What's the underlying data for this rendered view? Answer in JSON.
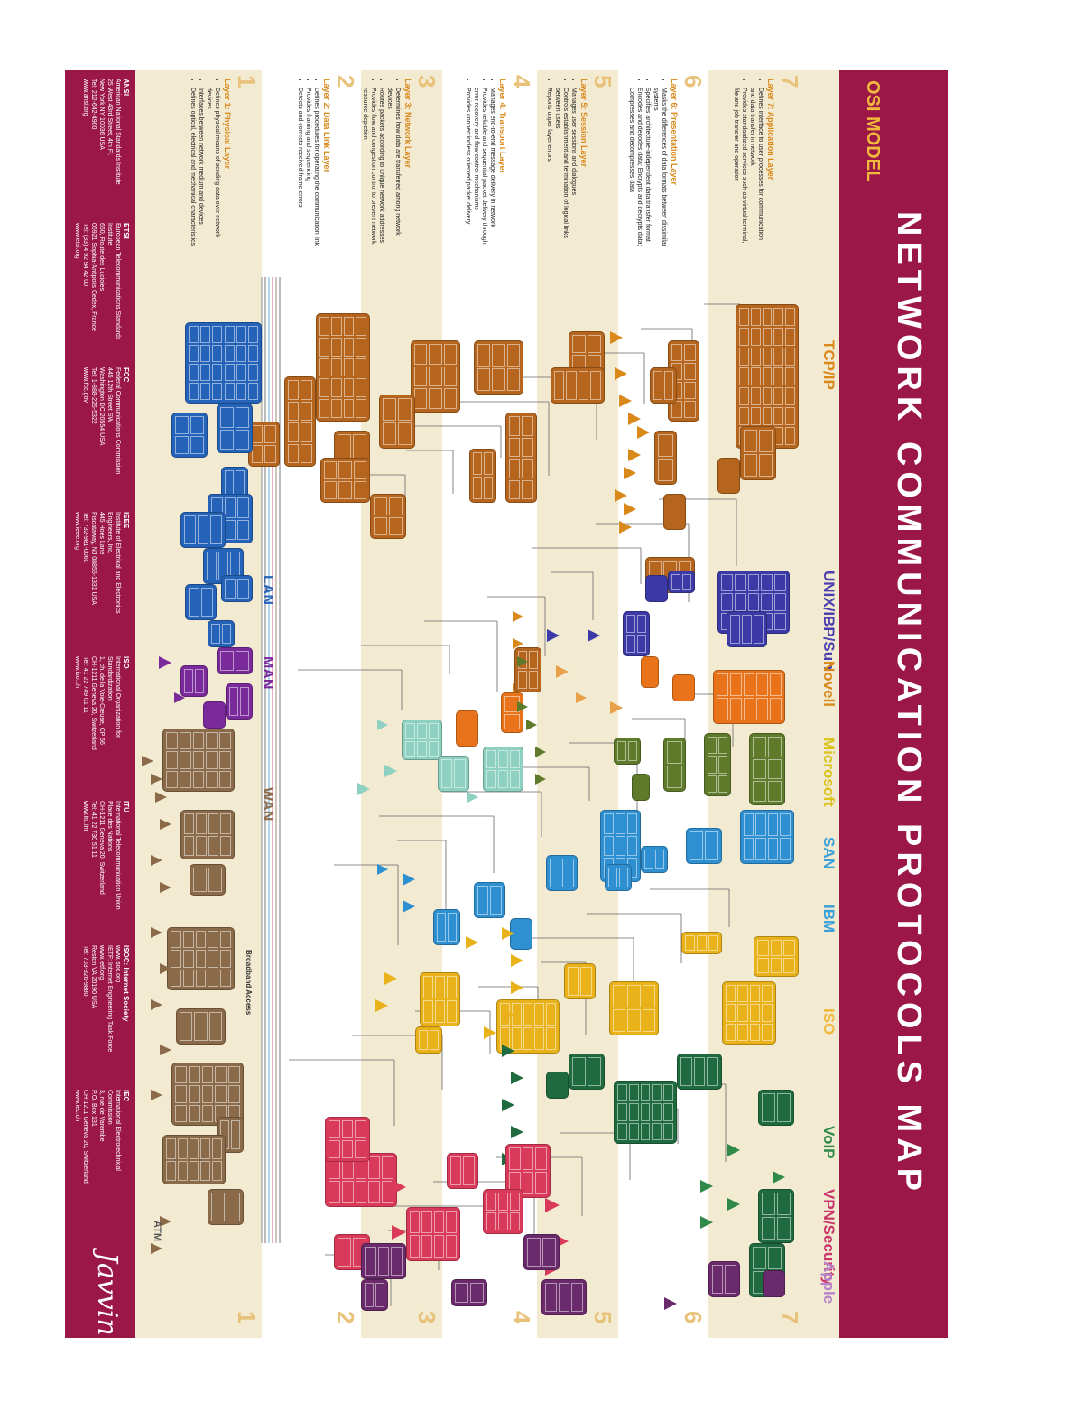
{
  "title": "NETWORK COMMUNICATION PROTOCOLS MAP",
  "osi_label": "OSI MODEL",
  "categories": [
    {
      "name": "TCP/IP",
      "color": "#d9881a"
    },
    {
      "name": "UNIX/IBP/Sun",
      "color": "#4b3fb0"
    },
    {
      "name": "Novell",
      "color": "#d9881a"
    },
    {
      "name": "Microsoft",
      "color": "#d9c21a"
    },
    {
      "name": "SAN",
      "color": "#3aa0d9"
    },
    {
      "name": "IBM",
      "color": "#3aa0d9"
    },
    {
      "name": "ISO",
      "color": "#f0b93c"
    },
    {
      "name": "VoIP",
      "color": "#2f8a4a"
    },
    {
      "name": "VPN/Security",
      "color": "#c9356a"
    },
    {
      "name": "Apple",
      "color": "#b784c9"
    }
  ],
  "layers": [
    {
      "num": "7",
      "title": "Layer 7: Application Layer",
      "points": [
        "Defines interface to user processes for communication and data transfer in network",
        "Provides standardized services such as virtual terminal, file and job transfer and operation"
      ]
    },
    {
      "num": "6",
      "title": "Layer 6: Presentation Layer",
      "points": [
        "Masks the differences of data formats between dissimilar systems",
        "Specifies architecture-independent data transfer format",
        "Encodes and decodes data; Encrypts and decrypts data; Compresses and decompresses data"
      ]
    },
    {
      "num": "5",
      "title": "Layer 5: Session Layer",
      "points": [
        "Manages user sessions and dialogues",
        "Controls establishment and termination of logical links between users",
        "Reports upper layer errors"
      ]
    },
    {
      "num": "4",
      "title": "Layer 4: Transport Layer",
      "points": [
        "Manages end-to-end message delivery in network",
        "Provides reliable and sequential packet delivery through error recovery and flow control mechanisms",
        "Provides connectionless oriented packet delivery"
      ]
    },
    {
      "num": "3",
      "title": "Layer 3: Network Layer",
      "points": [
        "Determines how data are transferred among network devices",
        "Routes packets according to unique network addresses",
        "Provides flow and congestion control to prevent network resource depletion"
      ]
    },
    {
      "num": "2",
      "title": "Layer 2: Data Link Layer",
      "points": [
        "Defines procedures for operating the communication link",
        "Provides framing and sequencing",
        "Detects and corrects received frame errors"
      ]
    },
    {
      "num": "1",
      "title": "Layer 1: Physical Layer",
      "points": [
        "Defines physical means of sending data over network devices",
        "Interfaces between network medium and devices",
        "Defines optical, electrical and mechanical characteristics"
      ]
    }
  ],
  "network_labels": [
    {
      "text": "LAN",
      "color": "#2a63b8"
    },
    {
      "text": "MAN",
      "color": "#7a2a9b"
    },
    {
      "text": "WAN",
      "color": "#8a6a48"
    },
    {
      "text": "ATM",
      "color": "#555555"
    },
    {
      "text": "Broadband Access",
      "color": "#333333"
    }
  ],
  "footer_orgs": [
    {
      "name": "ANSI",
      "lines": [
        "American National Standards Institute",
        "25 West 43rd Street, 4th Fl.",
        "New York NY 10036 USA",
        "Tel: 212-642-4900",
        "www.ansi.org"
      ]
    },
    {
      "name": "ETSI",
      "lines": [
        "European Telecommunications Standards Institute",
        "650, Route des Lucioles",
        "06921 Sophia-Antipolis Cedex, France",
        "Tel: (33) 4 92 94 42 00",
        "www.etsi.org"
      ]
    },
    {
      "name": "FCC",
      "lines": [
        "Federal Communications Commission",
        "445 12th Street SW",
        "Washington DC 20554 USA",
        "Tel: 1-888-225-5322",
        "www.fcc.gov"
      ]
    },
    {
      "name": "IEEE",
      "lines": [
        "Institute of Electrical and Electronics Engineers, Inc.",
        "445 Hoes Lane",
        "Piscataway, NJ 08855-1331 USA",
        "Tel: 732-981-0060",
        "www.ieee.org"
      ]
    },
    {
      "name": "ISO",
      "lines": [
        "International Organization for Standardization",
        "1, ch. de la Voie-Creuse, CP 56",
        "CH-1211 Geneva 20, Switzerland",
        "Tel: 41 22 749 01 11",
        "www.iso.ch"
      ]
    },
    {
      "name": "ITU",
      "lines": [
        "International Telecommunication Union",
        "Place des Nations",
        "CH-1211 Geneva 20, Switzerland",
        "Tel: 41 22 730 51 11",
        "www.itu.int"
      ]
    },
    {
      "name": "ISOC: Internet Society",
      "lines": [
        "www.isoc.org",
        "IETF: Internet Engineering Task Force",
        "www.ietf.org",
        "Reston VA 20190 USA",
        "Tel: 703-326-9880"
      ]
    },
    {
      "name": "IEC",
      "lines": [
        "International Electrotechnical Commission",
        "3, rue de Varembe",
        "P.O. Box 131",
        "CH-1211 Geneva 20, Switzerland",
        "www.iec.ch"
      ]
    }
  ],
  "brand": "Javvin"
}
